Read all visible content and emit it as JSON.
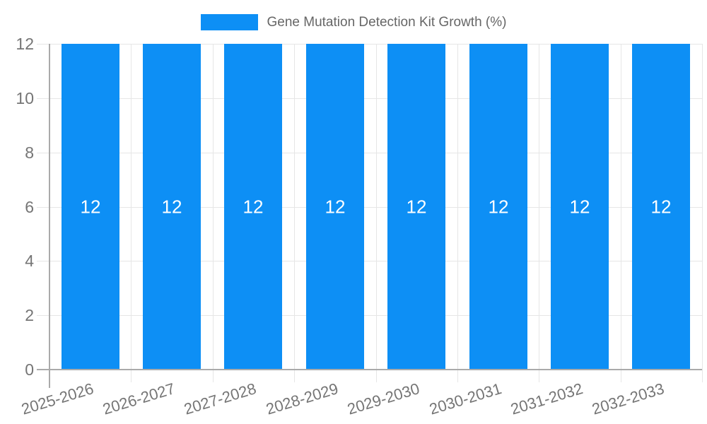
{
  "legend": {
    "label": "Gene Mutation Detection Kit Growth (%)"
  },
  "chart_data": {
    "type": "bar",
    "title": "Gene Mutation Detection Kit Growth (%)",
    "categories": [
      "2025-2026",
      "2026-2027",
      "2027-2028",
      "2028-2029",
      "2029-2030",
      "2030-2031",
      "2031-2032",
      "2032-2033"
    ],
    "series": [
      {
        "name": "Gene Mutation Detection Kit Growth (%)",
        "values": [
          12,
          12,
          12,
          12,
          12,
          12,
          12,
          12
        ]
      }
    ],
    "value_labels": [
      "12",
      "12",
      "12",
      "12",
      "12",
      "12",
      "12",
      "12"
    ],
    "xlabel": "",
    "ylabel": "",
    "ylim": [
      0,
      12
    ],
    "yticks": [
      0,
      2,
      4,
      6,
      8,
      10,
      12
    ],
    "grid": true,
    "legend_position": "top",
    "x_tick_rotation_deg": -17
  },
  "colors": {
    "bar": "#0d8ff5",
    "value_label": "#ffffff",
    "tick_text": "#757575",
    "legend_text": "#666666",
    "grid": "#e6e6e6",
    "axis": "#aaaaaa",
    "background": "#ffffff"
  }
}
